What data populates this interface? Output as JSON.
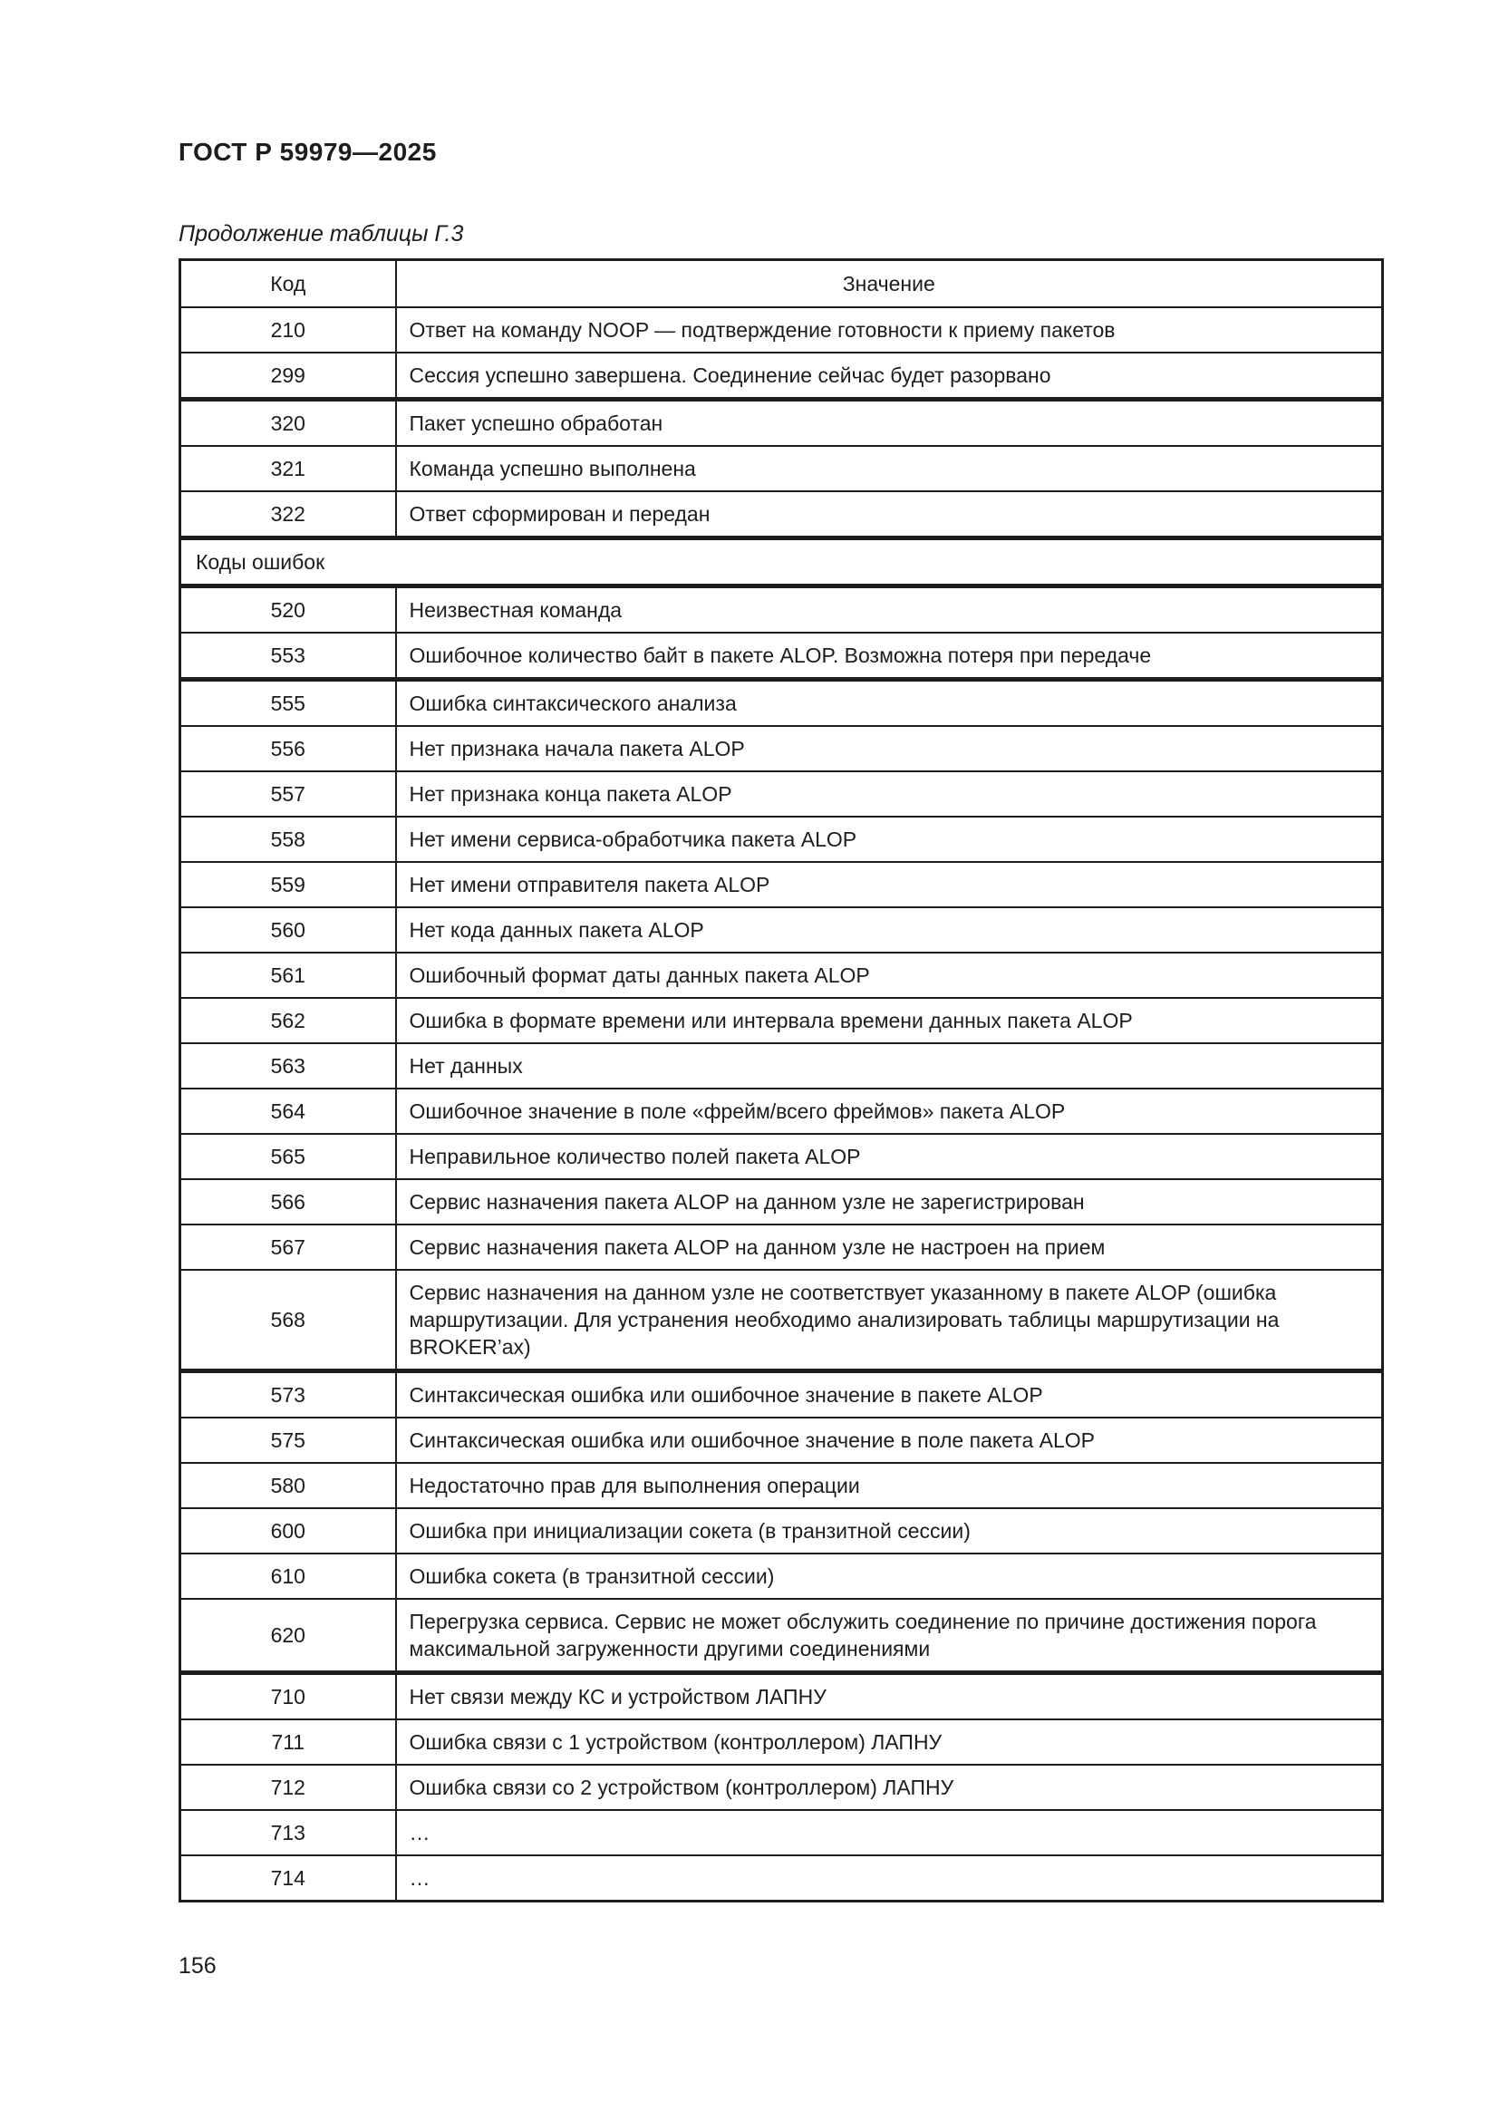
{
  "theme": {
    "text": "#1d1d1d",
    "background": "#ffffff"
  },
  "header": {
    "doc_code": "ГОСТ Р 59979—2025"
  },
  "caption": "Продолжение таблицы Г.3",
  "footer": {
    "page_number": "156"
  },
  "table": {
    "columns": {
      "code": "Код",
      "value": "Значение"
    },
    "rows": [
      {
        "code": "210",
        "value": "Ответ на команду NOOP — подтверждение готовности к приему пакетов"
      },
      {
        "code": "299",
        "value": "Сессия успешно завершена. Соединение сейчас будет разорвано"
      },
      {
        "code": "320",
        "value": "Пакет успешно обработан"
      },
      {
        "code": "321",
        "value": "Команда успешно выполнена"
      },
      {
        "code": "322",
        "value": "Ответ сформирован и передан"
      },
      {
        "section": "Коды ошибок"
      },
      {
        "code": "520",
        "value": "Неизвестная команда"
      },
      {
        "code": "553",
        "value": "Ошибочное количество байт в пакете ALOP. Возможна потеря при передаче"
      },
      {
        "code": "555",
        "value": "Ошибка синтаксического анализа"
      },
      {
        "code": "556",
        "value": "Нет признака начала пакета ALOP"
      },
      {
        "code": "557",
        "value": "Нет признака конца пакета ALOP"
      },
      {
        "code": "558",
        "value": "Нет имени сервиса-обработчика пакета ALOP"
      },
      {
        "code": "559",
        "value": "Нет имени отправителя пакета ALOP"
      },
      {
        "code": "560",
        "value": "Нет кода данных пакета ALOP"
      },
      {
        "code": "561",
        "value": "Ошибочный формат даты данных пакета ALOP"
      },
      {
        "code": "562",
        "value": "Ошибка в формате времени или интервала времени данных пакета ALOP"
      },
      {
        "code": "563",
        "value": "Нет данных"
      },
      {
        "code": "564",
        "value": "Ошибочное значение в поле «фрейм/всего фреймов» пакета ALOP"
      },
      {
        "code": "565",
        "value": "Неправильное количество полей пакета ALOP"
      },
      {
        "code": "566",
        "value": "Сервис назначения пакета ALOP на данном узле не зарегистрирован"
      },
      {
        "code": "567",
        "value": "Сервис назначения пакета ALOP на данном узле не настроен на прием"
      },
      {
        "code": "568",
        "value": "Сервис назначения на данном узле не соответствует указанному в пакете ALOP (ошибка маршрутизации. Для устранения необходимо анализировать таблицы маршрутизации на BROKER’ах)"
      },
      {
        "code": "573",
        "value": "Синтаксическая ошибка или ошибочное значение в пакете ALOP"
      },
      {
        "code": "575",
        "value": "Синтаксическая ошибка или ошибочное значение в поле пакета ALOP"
      },
      {
        "code": "580",
        "value": "Недостаточно прав для выполнения операции"
      },
      {
        "code": "600",
        "value": "Ошибка при инициализации сокета (в транзитной сессии)"
      },
      {
        "code": "610",
        "value": "Ошибка сокета (в транзитной сессии)"
      },
      {
        "code": "620",
        "value": "Перегрузка сервиса. Сервис не может обслужить соединение по причине достижения по­рога максимальной загруженности другими соединениями"
      },
      {
        "code": "710",
        "value": "Нет связи между КС и устройством ЛАПНУ"
      },
      {
        "code": "711",
        "value": "Ошибка связи с 1 устройством (контроллером) ЛАПНУ"
      },
      {
        "code": "712",
        "value": "Ошибка связи со 2 устройством (контроллером) ЛАПНУ"
      },
      {
        "code": "713",
        "value": "…"
      },
      {
        "code": "714",
        "value": "…"
      }
    ]
  }
}
